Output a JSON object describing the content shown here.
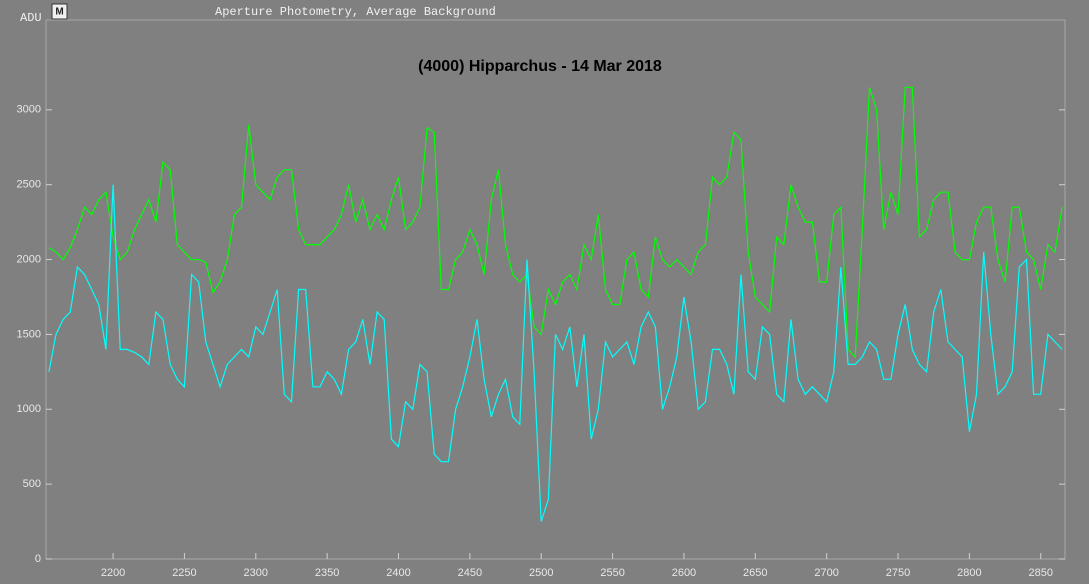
{
  "chart_data": {
    "type": "line",
    "header": "Aperture Photometry, Average Background",
    "ylabel": "ADU",
    "title": "(4000) Hipparchus - 14 Mar 2018",
    "xlim": [
      2153,
      2867
    ],
    "ylim": [
      0,
      3600
    ],
    "xticks": [
      2200,
      2250,
      2300,
      2350,
      2400,
      2450,
      2500,
      2550,
      2600,
      2650,
      2700,
      2750,
      2800,
      2850
    ],
    "yticks": [
      0,
      500,
      1000,
      1500,
      2000,
      2500,
      3000
    ],
    "x": [
      2155,
      2160,
      2165,
      2170,
      2175,
      2180,
      2185,
      2190,
      2195,
      2200,
      2205,
      2210,
      2215,
      2220,
      2225,
      2230,
      2235,
      2240,
      2245,
      2250,
      2255,
      2260,
      2265,
      2270,
      2275,
      2280,
      2285,
      2290,
      2295,
      2300,
      2305,
      2310,
      2315,
      2320,
      2325,
      2330,
      2335,
      2340,
      2345,
      2350,
      2355,
      2360,
      2365,
      2370,
      2375,
      2380,
      2385,
      2390,
      2395,
      2400,
      2405,
      2410,
      2415,
      2420,
      2425,
      2430,
      2435,
      2440,
      2445,
      2450,
      2455,
      2460,
      2465,
      2470,
      2475,
      2480,
      2485,
      2490,
      2495,
      2500,
      2505,
      2510,
      2515,
      2520,
      2525,
      2530,
      2535,
      2540,
      2545,
      2550,
      2555,
      2560,
      2565,
      2570,
      2575,
      2580,
      2585,
      2590,
      2595,
      2600,
      2605,
      2610,
      2615,
      2620,
      2625,
      2630,
      2635,
      2640,
      2645,
      2650,
      2655,
      2660,
      2665,
      2670,
      2675,
      2680,
      2685,
      2690,
      2695,
      2700,
      2705,
      2710,
      2715,
      2720,
      2725,
      2730,
      2735,
      2740,
      2745,
      2750,
      2755,
      2760,
      2765,
      2770,
      2775,
      2780,
      2785,
      2790,
      2795,
      2800,
      2805,
      2810,
      2815,
      2820,
      2825,
      2830,
      2835,
      2840,
      2845,
      2850,
      2855,
      2860,
      2865
    ],
    "series": [
      {
        "color": "#00ff00",
        "values": [
          2080,
          2050,
          2000,
          2080,
          2200,
          2350,
          2300,
          2400,
          2450,
          2150,
          2000,
          2050,
          2200,
          2300,
          2400,
          2250,
          2650,
          2600,
          2100,
          2050,
          2000,
          2000,
          1980,
          1780,
          1850,
          2000,
          2300,
          2350,
          2900,
          2500,
          2450,
          2400,
          2550,
          2600,
          2600,
          2200,
          2100,
          2100,
          2100,
          2150,
          2200,
          2300,
          2500,
          2250,
          2400,
          2200,
          2300,
          2200,
          2400,
          2550,
          2200,
          2250,
          2350,
          2880,
          2850,
          1800,
          1800,
          2000,
          2050,
          2200,
          2100,
          1900,
          2400,
          2600,
          2100,
          1900,
          1850,
          1900,
          1550,
          1500,
          1800,
          1700,
          1850,
          1900,
          1800,
          2100,
          2000,
          2300,
          1800,
          1700,
          1700,
          2000,
          2050,
          1800,
          1750,
          2150,
          2000,
          1950,
          2000,
          1950,
          1900,
          2050,
          2100,
          2550,
          2500,
          2550,
          2850,
          2800,
          2050,
          1750,
          1700,
          1650,
          2150,
          2100,
          2500,
          2350,
          2250,
          2250,
          1850,
          1850,
          2300,
          2350,
          1400,
          1350,
          2200,
          3150,
          3000,
          2200,
          2450,
          2300,
          3150,
          3150,
          2150,
          2200,
          2400,
          2450,
          2450,
          2050,
          2000,
          2000,
          2250,
          2350,
          2350,
          2000,
          1850,
          2350,
          2350,
          2050,
          2000,
          1800,
          2100,
          2050,
          2350
        ]
      },
      {
        "color": "#00ffff",
        "values": [
          1250,
          1500,
          1600,
          1650,
          1950,
          1900,
          1800,
          1700,
          1400,
          2500,
          1400,
          1400,
          1380,
          1350,
          1300,
          1650,
          1600,
          1300,
          1200,
          1150,
          1900,
          1850,
          1450,
          1300,
          1150,
          1300,
          1350,
          1400,
          1350,
          1550,
          1500,
          1650,
          1800,
          1100,
          1050,
          1800,
          1800,
          1150,
          1150,
          1250,
          1200,
          1100,
          1400,
          1450,
          1600,
          1300,
          1650,
          1600,
          800,
          750,
          1050,
          1000,
          1300,
          1250,
          700,
          650,
          650,
          1000,
          1150,
          1350,
          1600,
          1200,
          950,
          1100,
          1200,
          950,
          900,
          2000,
          1250,
          250,
          400,
          1500,
          1400,
          1550,
          1150,
          1500,
          800,
          1000,
          1450,
          1350,
          1400,
          1450,
          1300,
          1550,
          1650,
          1550,
          1000,
          1150,
          1350,
          1750,
          1450,
          1000,
          1050,
          1400,
          1400,
          1300,
          1100,
          1900,
          1250,
          1200,
          1550,
          1500,
          1100,
          1050,
          1600,
          1200,
          1100,
          1150,
          1100,
          1050,
          1250,
          1950,
          1300,
          1300,
          1350,
          1450,
          1400,
          1200,
          1200,
          1500,
          1700,
          1400,
          1300,
          1250,
          1650,
          1800,
          1450,
          1400,
          1350,
          850,
          1100,
          2050,
          1500,
          1100,
          1150,
          1250,
          1950,
          2000,
          1100,
          1100,
          1500,
          1450,
          1400
        ]
      }
    ]
  }
}
